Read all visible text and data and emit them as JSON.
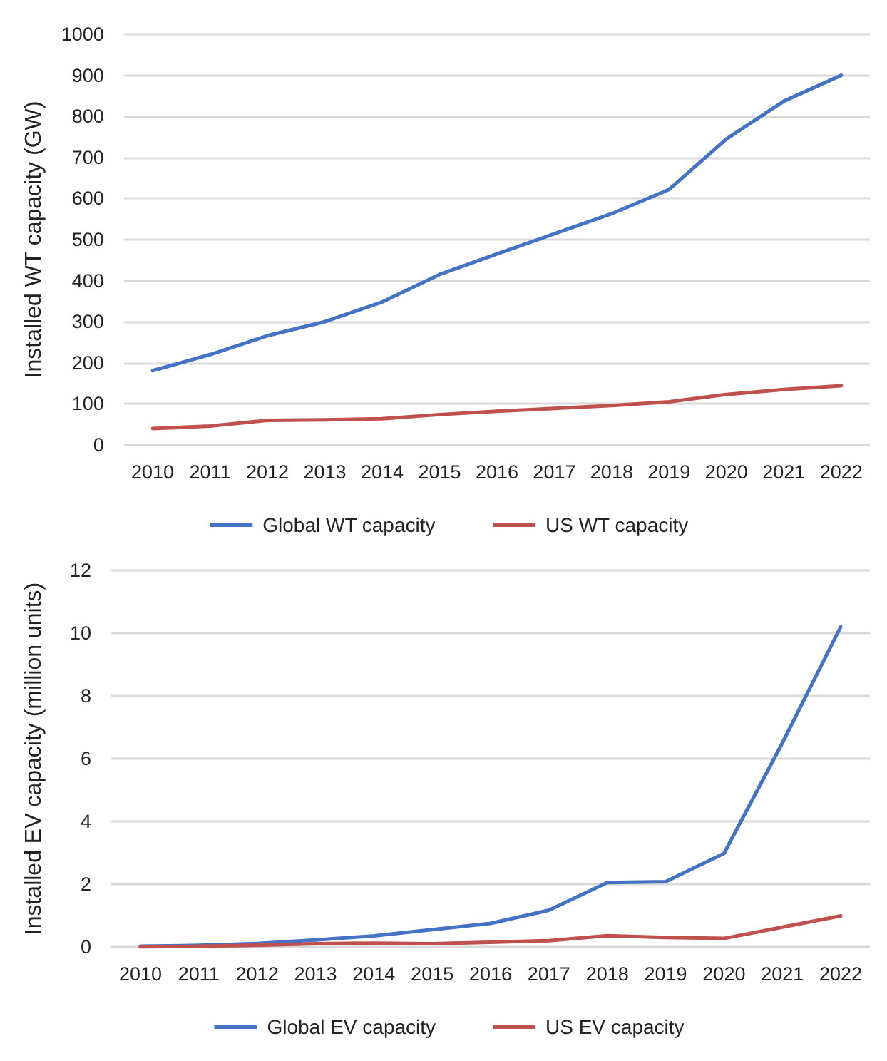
{
  "chart_data": [
    {
      "type": "line",
      "ylabel": "Installed WT capacity (GW)",
      "categories": [
        "2010",
        "2011",
        "2012",
        "2013",
        "2014",
        "2015",
        "2016",
        "2017",
        "2018",
        "2019",
        "2020",
        "2021",
        "2022"
      ],
      "series": [
        {
          "name": "Global WT capacity",
          "color": "#4472c4",
          "values": [
            181,
            220,
            266,
            300,
            348,
            415,
            465,
            514,
            563,
            622,
            745,
            837,
            900
          ]
        },
        {
          "name": "US WT capacity",
          "color": "#c0504d",
          "values": [
            40,
            46,
            60,
            61,
            64,
            74,
            82,
            89,
            96,
            105,
            123,
            135,
            144
          ]
        }
      ],
      "ylim": [
        0,
        1000
      ],
      "yticks": [
        0,
        100,
        200,
        300,
        400,
        500,
        600,
        700,
        800,
        900,
        1000
      ],
      "grid": "y",
      "legend": "bottom",
      "marker": "none",
      "line_style": "solid"
    },
    {
      "type": "line",
      "ylabel": "Installed EV capacity (million units)",
      "categories": [
        "2010",
        "2011",
        "2012",
        "2013",
        "2014",
        "2015",
        "2016",
        "2017",
        "2018",
        "2019",
        "2020",
        "2021",
        "2022"
      ],
      "series": [
        {
          "name": "Global EV capacity",
          "color": "#4472c4",
          "values": [
            0.02,
            0.05,
            0.11,
            0.22,
            0.35,
            0.55,
            0.75,
            1.17,
            2.05,
            2.08,
            2.98,
            6.5,
            10.2
          ]
        },
        {
          "name": "US EV capacity",
          "color": "#c0504d",
          "values": [
            0,
            0.02,
            0.05,
            0.1,
            0.12,
            0.1,
            0.15,
            0.2,
            0.36,
            0.3,
            0.27,
            0.63,
            0.99
          ]
        }
      ],
      "ylim": [
        0,
        12
      ],
      "yticks": [
        0,
        2,
        4,
        6,
        8,
        10,
        12
      ],
      "grid": "y",
      "legend": "bottom",
      "marker": "none",
      "line_style": "solid"
    }
  ]
}
